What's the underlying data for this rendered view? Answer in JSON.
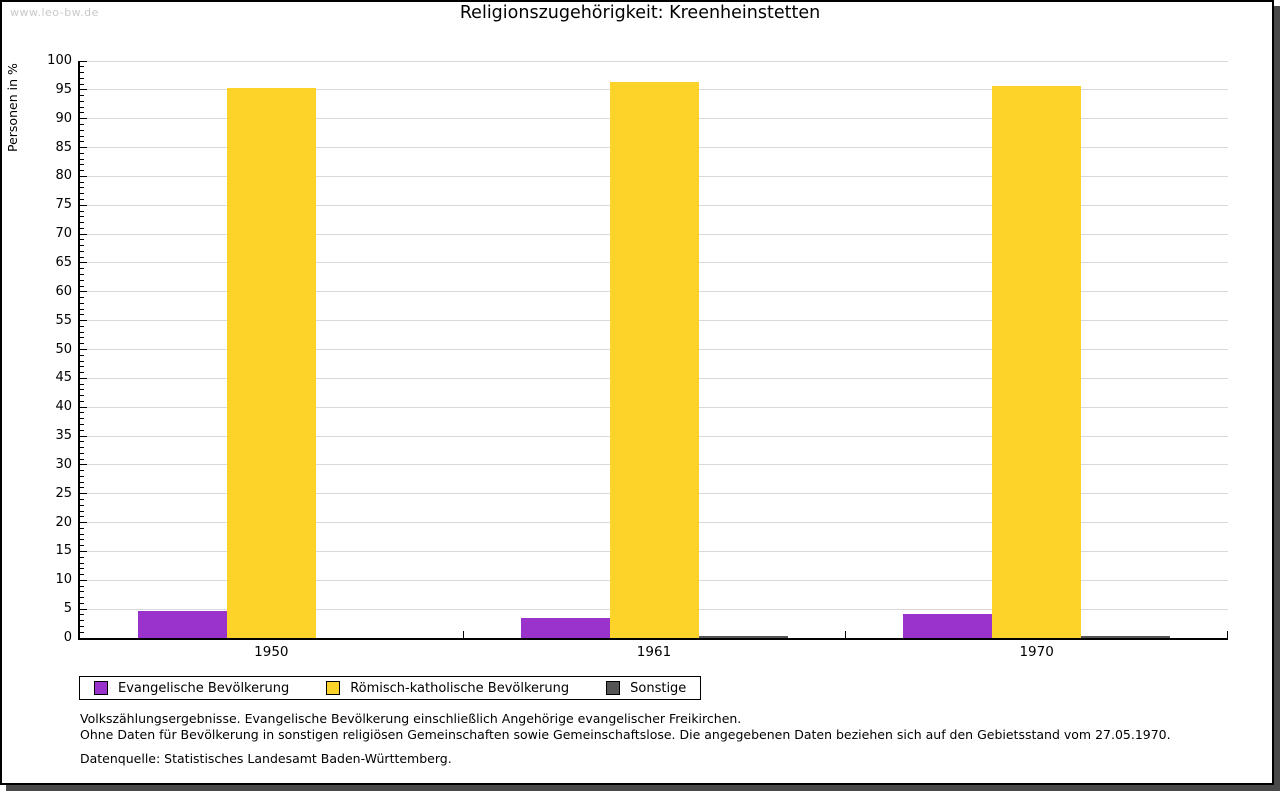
{
  "watermark": "www.leo-bw.de",
  "title": "Religionszugehörigkeit: Kreenheinstetten",
  "chart_data": {
    "type": "bar",
    "title": "Religionszugehörigkeit: Kreenheinstetten",
    "ylabel": "Personen in %",
    "xlabel": "",
    "ylim": [
      0,
      100
    ],
    "ytick_major": 5,
    "ytick_minor": 1,
    "grid": true,
    "legend_position": "bottom",
    "categories": [
      "1950",
      "1961",
      "1970"
    ],
    "series": [
      {
        "name": "Evangelische Bevölkerung",
        "color": "#9933cc",
        "values": [
          4.6,
          3.4,
          4.2
        ]
      },
      {
        "name": "Römisch-katholische Bevölkerung",
        "color": "#fdd32a",
        "values": [
          95.3,
          96.4,
          95.7
        ]
      },
      {
        "name": "Sonstige",
        "color": "#555555",
        "values": [
          0.0,
          0.3,
          0.3
        ]
      }
    ]
  },
  "footnotes": {
    "line1": "Volkszählungsergebnisse. Evangelische Bevölkerung einschließlich Angehörige evangelischer Freikirchen.",
    "line2": "Ohne Daten für Bevölkerung in sonstigen religiösen Gemeinschaften sowie Gemeinschaftslose. Die angegebenen Daten beziehen sich auf den Gebietsstand vom 27.05.1970.",
    "source": "Datenquelle: Statistisches Landesamt Baden-Württemberg."
  },
  "colors": {
    "gridline": "#d9d9d9",
    "axis": "#000000",
    "frame_shadow": "#4a4a4a",
    "watermark_text": "#c9c9c9"
  }
}
